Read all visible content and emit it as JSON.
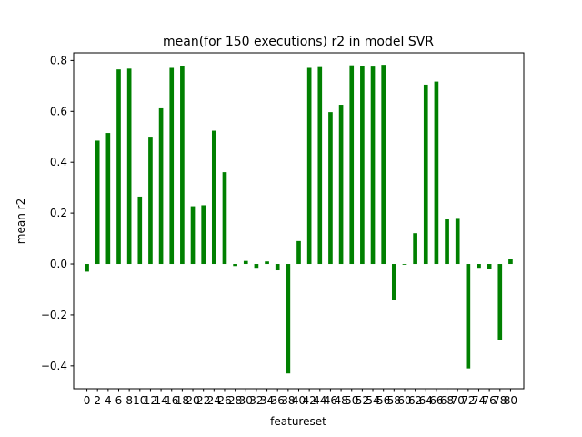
{
  "chart_data": {
    "type": "bar",
    "title": "mean(for 150 executions) r2 in model SVR",
    "xlabel": "featureset",
    "ylabel": "mean r2",
    "ylim": [
      -0.49,
      0.83
    ],
    "xlim": [
      -2.5,
      82.5
    ],
    "bar_color": "#008000",
    "y_ticks": [
      -0.4,
      -0.2,
      0.0,
      0.2,
      0.4,
      0.6,
      0.8
    ],
    "y_tick_labels": [
      "−0.4",
      "−0.2",
      "0.0",
      "0.2",
      "0.4",
      "0.6",
      "0.8"
    ],
    "x_ticks": [
      0,
      2,
      4,
      6,
      8,
      10,
      12,
      14,
      16,
      18,
      20,
      22,
      24,
      26,
      28,
      30,
      32,
      34,
      36,
      38,
      40,
      42,
      44,
      46,
      48,
      50,
      52,
      54,
      56,
      58,
      60,
      62,
      64,
      66,
      68,
      70,
      72,
      74,
      76,
      78,
      80
    ],
    "x_tick_labels": [
      "0",
      "2",
      "4",
      "6",
      "8",
      "10",
      "12",
      "14",
      "16",
      "18",
      "20",
      "22",
      "24",
      "26",
      "28",
      "30",
      "32",
      "34",
      "36",
      "38",
      "40",
      "42",
      "44",
      "46",
      "48",
      "50",
      "52",
      "54",
      "56",
      "58",
      "60",
      "62",
      "64",
      "66",
      "68",
      "70",
      "72",
      "74",
      "76",
      "78",
      "80"
    ],
    "x": [
      0,
      2,
      4,
      6,
      8,
      10,
      12,
      14,
      16,
      18,
      20,
      22,
      24,
      26,
      28,
      30,
      32,
      34,
      36,
      38,
      40,
      42,
      44,
      46,
      48,
      50,
      52,
      54,
      56,
      58,
      60,
      62,
      64,
      66,
      68,
      70,
      72,
      74,
      76,
      78,
      80
    ],
    "values": [
      -0.03,
      0.485,
      0.515,
      0.765,
      0.768,
      0.265,
      0.497,
      0.612,
      0.771,
      0.777,
      0.227,
      0.231,
      0.524,
      0.361,
      -0.008,
      0.012,
      -0.015,
      0.01,
      -0.025,
      -0.43,
      0.09,
      0.771,
      0.774,
      0.597,
      0.626,
      0.781,
      0.778,
      0.776,
      0.783,
      -0.14,
      -0.003,
      0.121,
      0.705,
      0.717,
      0.177,
      0.181,
      -0.41,
      -0.015,
      -0.02,
      -0.3,
      0.018
    ]
  }
}
